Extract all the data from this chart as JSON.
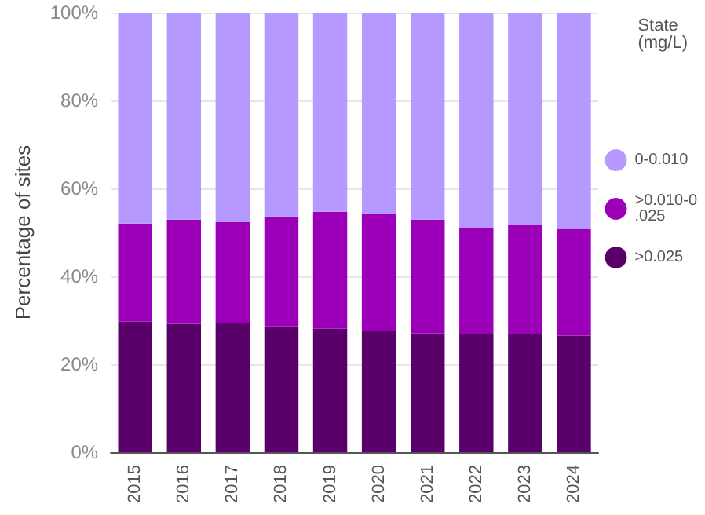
{
  "chart_data": {
    "type": "bar",
    "stacked": true,
    "ylabel": "Percentage of sites",
    "legend_title": "State (mg/L)",
    "legend": "right",
    "categories": [
      "2015",
      "2016",
      "2017",
      "2018",
      "2019",
      "2020",
      "2021",
      "2022",
      "2023",
      "2024"
    ],
    "series": [
      {
        "name": ">0.025",
        "color": "#5a006b",
        "values": [
          29.7,
          29.2,
          29.4,
          28.6,
          28.1,
          27.6,
          27.0,
          26.9,
          26.9,
          26.5
        ]
      },
      {
        "name": ">0.010-0.025",
        "color": "#9b00b8",
        "values": [
          22.3,
          23.7,
          22.9,
          25.0,
          26.6,
          26.5,
          25.9,
          24.0,
          24.9,
          24.3
        ]
      },
      {
        "name": "0-0.010",
        "color": "#b599ff",
        "values": [
          48.0,
          47.1,
          47.7,
          46.4,
          45.3,
          45.9,
          47.1,
          49.1,
          48.2,
          49.2
        ]
      }
    ],
    "ylim": [
      0,
      100
    ],
    "yticks": [
      {
        "value": 0,
        "label": "0%"
      },
      {
        "value": 20,
        "label": "20%"
      },
      {
        "value": 40,
        "label": "40%"
      },
      {
        "value": 60,
        "label": "60%"
      },
      {
        "value": 80,
        "label": "80%"
      },
      {
        "value": 100,
        "label": "100%"
      }
    ],
    "grid": "y"
  }
}
